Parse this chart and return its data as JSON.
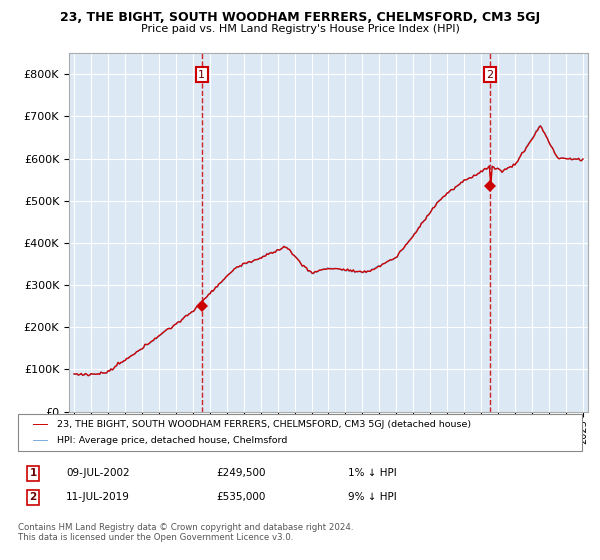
{
  "title": "23, THE BIGHT, SOUTH WOODHAM FERRERS, CHELMSFORD, CM3 5GJ",
  "subtitle": "Price paid vs. HM Land Registry's House Price Index (HPI)",
  "legend_line1": "23, THE BIGHT, SOUTH WOODHAM FERRERS, CHELMSFORD, CM3 5GJ (detached house)",
  "legend_line2": "HPI: Average price, detached house, Chelmsford",
  "transaction1_date": "09-JUL-2002",
  "transaction1_price": "£249,500",
  "transaction1_rel": "1% ↓ HPI",
  "transaction2_date": "11-JUL-2019",
  "transaction2_price": "£535,000",
  "transaction2_rel": "9% ↓ HPI",
  "footer1": "Contains HM Land Registry data © Crown copyright and database right 2024.",
  "footer2": "This data is licensed under the Open Government Licence v3.0.",
  "price_color": "#cc0000",
  "hpi_color": "#7aabdb",
  "vline_color": "#cc0000",
  "background_color": "#ffffff",
  "plot_bg_color": "#dce9f5",
  "grid_color": "#ffffff",
  "transaction1_year": 2002.53,
  "transaction2_year": 2019.53,
  "transaction1_price_val": 249500,
  "transaction2_price_val": 535000,
  "ylim_max": 850000,
  "ylim_min": 0,
  "xlim_min": 1994.7,
  "xlim_max": 2025.3
}
